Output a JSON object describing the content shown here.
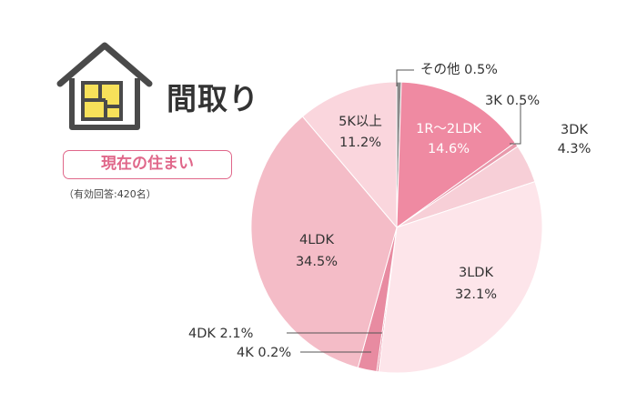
{
  "header": {
    "title": "間取り",
    "badge": "現在の住まい",
    "note": "（有効回答:420名）"
  },
  "colors": {
    "accent": "#e0678a",
    "icon_yellow": "#f7e15a",
    "icon_dark": "#4a4a4a"
  },
  "chart_data": {
    "type": "pie",
    "unit": "%",
    "slices": [
      {
        "label": "その他",
        "value": 0.5,
        "color": "#8a8a8a"
      },
      {
        "label": "1R～2LDK",
        "value": 14.6,
        "color": "#ef8aa2"
      },
      {
        "label": "3K",
        "value": 0.5,
        "color": "#e89aac"
      },
      {
        "label": "3DK",
        "value": 4.3,
        "color": "#f7cfd7"
      },
      {
        "label": "3LDK",
        "value": 32.1,
        "color": "#fde5ea"
      },
      {
        "label": "4K",
        "value": 0.2,
        "color": "#e4758f"
      },
      {
        "label": "4DK",
        "value": 2.1,
        "color": "#e88ba1"
      },
      {
        "label": "4LDK",
        "value": 34.5,
        "color": "#f4bcc7"
      },
      {
        "label": "5K以上",
        "value": 11.2,
        "color": "#fad6dd"
      }
    ],
    "labels": {
      "other": "その他 0.5%",
      "k3": "3K 0.5%",
      "dk3_name": "3DK",
      "dk3_value": "4.3%",
      "r2ldk_name": "1R～2LDK",
      "r2ldk_value": "14.6%",
      "k5_name": "5K以上",
      "k5_value": "11.2%",
      "ldk4_name": "4LDK",
      "ldk4_value": "34.5%",
      "ldk3_name": "3LDK",
      "ldk3_value": "32.1%",
      "dk4": "4DK 2.1%",
      "k4": "4K 0.2%"
    }
  }
}
